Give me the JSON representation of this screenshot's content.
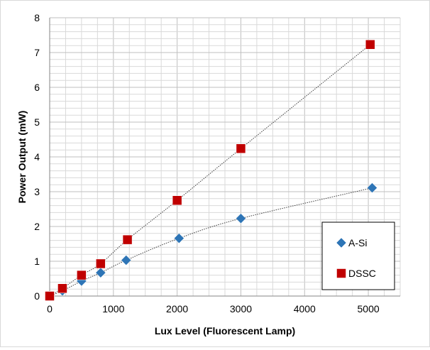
{
  "chart_data": {
    "type": "scatter",
    "title": "",
    "xlabel": "Lux Level (Fluorescent Lamp)",
    "ylabel": "Power Output (mW)",
    "xlim": [
      0,
      5500
    ],
    "ylim": [
      0,
      8
    ],
    "x_ticks": [
      0,
      1000,
      2000,
      3000,
      4000,
      5000
    ],
    "y_ticks": [
      0,
      1,
      2,
      3,
      4,
      5,
      6,
      7,
      8
    ],
    "x_minor_step": 250,
    "y_minor_step": 0.2,
    "grid": true,
    "legend_position": "bottom-right",
    "series": [
      {
        "name": "A-Si",
        "marker": "diamond",
        "color": "#2e75b6",
        "points": [
          [
            0,
            0.0
          ],
          [
            200,
            0.15
          ],
          [
            500,
            0.43
          ],
          [
            800,
            0.67
          ],
          [
            1200,
            1.03
          ],
          [
            2030,
            1.66
          ],
          [
            3000,
            2.23
          ],
          [
            5060,
            3.11
          ]
        ]
      },
      {
        "name": "DSSC",
        "marker": "square",
        "color": "#c00000",
        "points": [
          [
            0,
            0.0
          ],
          [
            200,
            0.22
          ],
          [
            500,
            0.6
          ],
          [
            800,
            0.93
          ],
          [
            1220,
            1.62
          ],
          [
            2000,
            2.75
          ],
          [
            3000,
            4.24
          ],
          [
            5030,
            7.23
          ]
        ]
      }
    ]
  }
}
